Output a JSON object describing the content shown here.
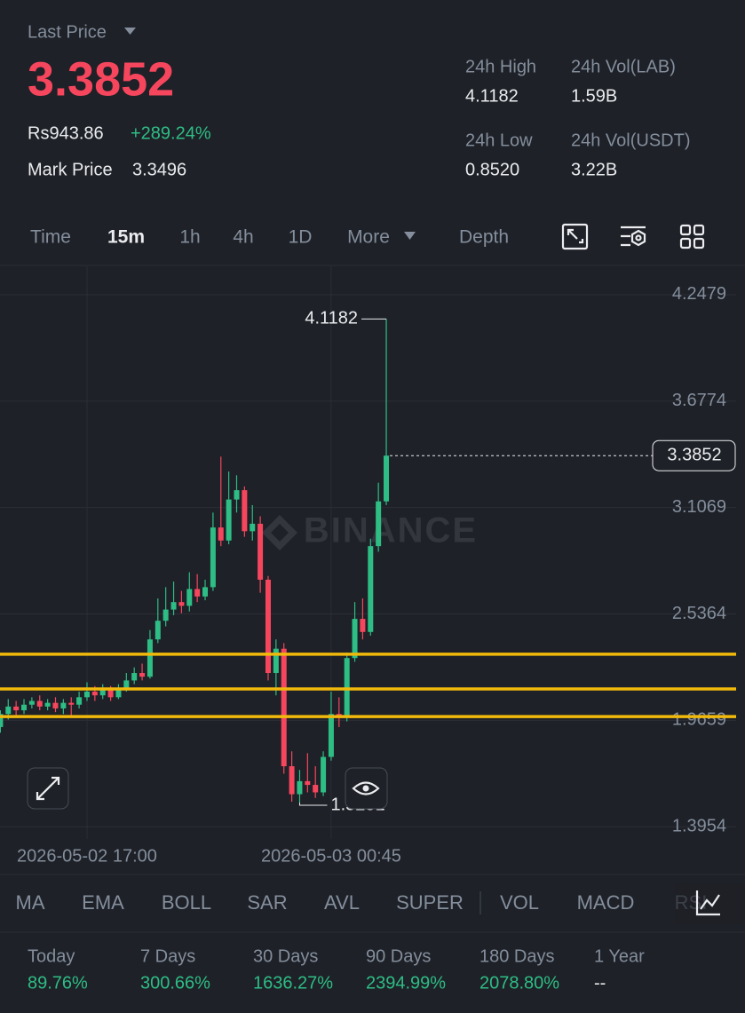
{
  "header": {
    "last_price_label": "Last Price",
    "price": "3.3852",
    "fiat": "Rs943.86",
    "change": "+289.24%",
    "mark_price_label": "Mark Price",
    "mark_price": "3.3496",
    "stats": [
      {
        "label": "24h High",
        "value": "4.1182"
      },
      {
        "label": "24h Vol(LAB)",
        "value": "1.59B"
      },
      {
        "label": "24h Low",
        "value": "0.8520"
      },
      {
        "label": "24h Vol(USDT)",
        "value": "3.22B"
      }
    ]
  },
  "intervals": [
    "Time",
    "15m",
    "1h",
    "4h",
    "1D",
    "More",
    "Depth"
  ],
  "selected_interval": "15m",
  "chart_data": {
    "type": "candlestick",
    "watermark": "BINANCE",
    "categories": [
      null,
      null,
      null,
      null,
      null,
      null,
      null,
      null,
      null,
      null,
      null,
      "2026-05-02 17:00",
      null,
      null,
      null,
      null,
      null,
      null,
      null,
      null,
      null,
      null,
      null,
      null,
      null,
      null,
      null,
      null,
      null,
      null,
      null,
      null,
      null,
      null,
      null,
      null,
      null,
      null,
      null,
      null,
      null,
      null,
      "2026-05-03 00:45",
      null,
      null,
      null,
      null,
      null,
      null,
      null
    ],
    "candles": [
      {
        "open": 1.93,
        "high": 2.02,
        "low": 1.9,
        "close": 2.0
      },
      {
        "open": 2.0,
        "high": 2.08,
        "low": 1.97,
        "close": 2.04
      },
      {
        "open": 2.04,
        "high": 2.07,
        "low": 1.99,
        "close": 2.02
      },
      {
        "open": 2.02,
        "high": 2.08,
        "low": 2.0,
        "close": 2.05
      },
      {
        "open": 2.05,
        "high": 2.09,
        "low": 2.03,
        "close": 2.07
      },
      {
        "open": 2.07,
        "high": 2.1,
        "low": 2.02,
        "close": 2.04
      },
      {
        "open": 2.04,
        "high": 2.08,
        "low": 2.02,
        "close": 2.06
      },
      {
        "open": 2.06,
        "high": 2.09,
        "low": 2.01,
        "close": 2.03
      },
      {
        "open": 2.03,
        "high": 2.08,
        "low": 2.0,
        "close": 2.06
      },
      {
        "open": 2.06,
        "high": 2.09,
        "low": 1.98,
        "close": 2.05
      },
      {
        "open": 2.05,
        "high": 2.12,
        "low": 2.03,
        "close": 2.09
      },
      {
        "open": 2.09,
        "high": 2.17,
        "low": 2.07,
        "close": 2.12
      },
      {
        "open": 2.12,
        "high": 2.15,
        "low": 2.07,
        "close": 2.1
      },
      {
        "open": 2.1,
        "high": 2.16,
        "low": 2.08,
        "close": 2.13
      },
      {
        "open": 2.13,
        "high": 2.15,
        "low": 2.07,
        "close": 2.09
      },
      {
        "open": 2.09,
        "high": 2.16,
        "low": 2.08,
        "close": 2.14
      },
      {
        "open": 2.14,
        "high": 2.22,
        "low": 2.12,
        "close": 2.18
      },
      {
        "open": 2.18,
        "high": 2.25,
        "low": 2.16,
        "close": 2.22
      },
      {
        "open": 2.22,
        "high": 2.27,
        "low": 2.18,
        "close": 2.2
      },
      {
        "open": 2.2,
        "high": 2.45,
        "low": 2.19,
        "close": 2.4
      },
      {
        "open": 2.4,
        "high": 2.62,
        "low": 2.38,
        "close": 2.5
      },
      {
        "open": 2.5,
        "high": 2.68,
        "low": 2.47,
        "close": 2.56
      },
      {
        "open": 2.56,
        "high": 2.71,
        "low": 2.53,
        "close": 2.6
      },
      {
        "open": 2.6,
        "high": 2.66,
        "low": 2.54,
        "close": 2.58
      },
      {
        "open": 2.58,
        "high": 2.76,
        "low": 2.55,
        "close": 2.67
      },
      {
        "open": 2.67,
        "high": 2.75,
        "low": 2.6,
        "close": 2.63
      },
      {
        "open": 2.63,
        "high": 2.72,
        "low": 2.61,
        "close": 2.68
      },
      {
        "open": 2.68,
        "high": 3.08,
        "low": 2.66,
        "close": 3.0
      },
      {
        "open": 3.0,
        "high": 3.38,
        "low": 2.9,
        "close": 2.93
      },
      {
        "open": 2.93,
        "high": 3.3,
        "low": 2.91,
        "close": 3.15
      },
      {
        "open": 3.15,
        "high": 3.28,
        "low": 3.08,
        "close": 3.2
      },
      {
        "open": 3.2,
        "high": 3.22,
        "low": 2.95,
        "close": 2.98
      },
      {
        "open": 2.98,
        "high": 3.12,
        "low": 2.93,
        "close": 3.02
      },
      {
        "open": 3.02,
        "high": 3.06,
        "low": 2.65,
        "close": 2.72
      },
      {
        "open": 2.72,
        "high": 2.74,
        "low": 2.18,
        "close": 2.22
      },
      {
        "open": 2.22,
        "high": 2.4,
        "low": 2.1,
        "close": 2.35
      },
      {
        "open": 2.35,
        "high": 2.38,
        "low": 1.68,
        "close": 1.72
      },
      {
        "open": 1.72,
        "high": 1.8,
        "low": 1.53,
        "close": 1.57
      },
      {
        "open": 1.57,
        "high": 1.7,
        "low": 1.5251,
        "close": 1.64
      },
      {
        "open": 1.64,
        "high": 1.79,
        "low": 1.58,
        "close": 1.62
      },
      {
        "open": 1.62,
        "high": 1.72,
        "low": 1.55,
        "close": 1.58
      },
      {
        "open": 1.58,
        "high": 1.8,
        "low": 1.56,
        "close": 1.77
      },
      {
        "open": 1.77,
        "high": 2.12,
        "low": 1.75,
        "close": 2.0
      },
      {
        "open": 2.0,
        "high": 2.09,
        "low": 1.93,
        "close": 1.98
      },
      {
        "open": 1.98,
        "high": 2.33,
        "low": 1.96,
        "close": 2.3
      },
      {
        "open": 2.3,
        "high": 2.6,
        "low": 2.28,
        "close": 2.51
      },
      {
        "open": 2.51,
        "high": 2.62,
        "low": 2.4,
        "close": 2.44
      },
      {
        "open": 2.44,
        "high": 2.94,
        "low": 2.42,
        "close": 2.9
      },
      {
        "open": 2.9,
        "high": 3.24,
        "low": 2.87,
        "close": 3.14
      },
      {
        "open": 3.14,
        "high": 4.1182,
        "low": 3.12,
        "close": 3.3852
      }
    ],
    "ylim": [
      1.33,
      4.4
    ],
    "yticks": [
      4.2479,
      3.6774,
      3.1069,
      2.5364,
      1.9659,
      1.3954
    ],
    "grid": true,
    "up_color": "#2ebd85",
    "down_color": "#f6465d",
    "horizontal_lines": {
      "color": "#f0b90b",
      "values": [
        2.3204,
        2.1344,
        1.9864
      ]
    }
  },
  "indicators": [
    "MA",
    "EMA",
    "BOLL",
    "SAR",
    "AVL",
    "SUPER",
    "VOL",
    "MACD",
    "RSI"
  ],
  "performance": [
    {
      "label": "Today",
      "value": "89.76%"
    },
    {
      "label": "7 Days",
      "value": "300.66%"
    },
    {
      "label": "30 Days",
      "value": "1636.27%"
    },
    {
      "label": "90 Days",
      "value": "2394.99%"
    },
    {
      "label": "180 Days",
      "value": "2078.80%"
    },
    {
      "label": "1 Year",
      "value": "--"
    }
  ]
}
